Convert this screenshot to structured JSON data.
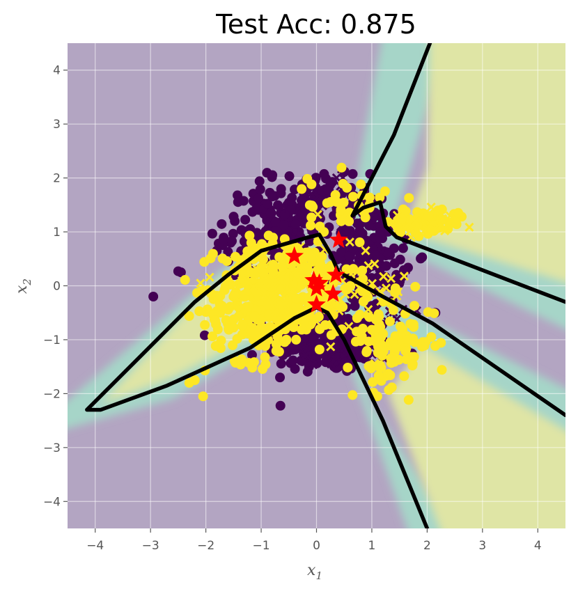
{
  "chart_data": {
    "type": "scatter",
    "title": "Test Acc: 0.875",
    "xlabel": "x",
    "xlabel_sub": "1",
    "ylabel": "x",
    "ylabel_sub": "2",
    "xlim": [
      -4.5,
      4.5
    ],
    "ylim": [
      -4.5,
      4.5
    ],
    "xticks": [
      -4,
      -3,
      -2,
      -1,
      0,
      1,
      2,
      3,
      4
    ],
    "yticks": [
      -4,
      -3,
      -2,
      -1,
      0,
      1,
      2,
      3,
      4
    ],
    "xtick_labels": [
      "−4",
      "−3",
      "−2",
      "−1",
      "0",
      "1",
      "2",
      "3",
      "4"
    ],
    "ytick_labels": [
      "−4",
      "−3",
      "−2",
      "−1",
      "0",
      "1",
      "2",
      "3",
      "4"
    ],
    "grid": true,
    "colors": {
      "class0": "#440154",
      "class1": "#fde725",
      "star": "#ff0000",
      "boundary": "#000000",
      "bg_purple": "#b3a5c2",
      "bg_teal": "#a6d5c8",
      "bg_yellow": "#dfe5a5",
      "axes_face": "#e5e5e5",
      "grid": "#ffffff"
    },
    "decision_boundary": [
      [
        [
          2.05,
          4.5
        ],
        [
          1.4,
          2.8
        ],
        [
          0.65,
          1.3
        ],
        [
          0.85,
          1.45
        ],
        [
          1.15,
          1.55
        ],
        [
          1.25,
          1.1
        ],
        [
          1.45,
          0.9
        ],
        [
          4.5,
          -0.3
        ]
      ],
      [
        [
          0.5,
          0.2
        ],
        [
          1.2,
          -0.2
        ],
        [
          2.1,
          -0.7
        ],
        [
          4.5,
          -2.4
        ]
      ],
      [
        [
          0.0,
          -0.4
        ],
        [
          0.2,
          -0.5
        ],
        [
          0.5,
          -1.0
        ],
        [
          1.2,
          -2.5
        ],
        [
          2.0,
          -4.5
        ]
      ],
      [
        [
          -0.15,
          0.9
        ],
        [
          0.05,
          0.95
        ],
        [
          0.25,
          0.6
        ],
        [
          0.4,
          0.25
        ]
      ],
      [
        [
          -0.15,
          0.9
        ],
        [
          -1.0,
          0.65
        ],
        [
          -1.6,
          0.2
        ],
        [
          -2.2,
          -0.3
        ],
        [
          -4.15,
          -2.3
        ],
        [
          -3.9,
          -2.3
        ],
        [
          -2.7,
          -1.85
        ],
        [
          -1.2,
          -1.15
        ],
        [
          -0.4,
          -0.6
        ],
        [
          0.0,
          -0.4
        ]
      ]
    ],
    "stars": [
      {
        "x": -0.4,
        "y": 0.55
      },
      {
        "x": 0.4,
        "y": 0.85
      },
      {
        "x": -0.05,
        "y": 0.1
      },
      {
        "x": 0.05,
        "y": 0.05
      },
      {
        "x": 0.0,
        "y": -0.05
      },
      {
        "x": 0.35,
        "y": 0.2
      },
      {
        "x": 0.3,
        "y": -0.15
      },
      {
        "x": 0.0,
        "y": -0.35
      }
    ],
    "series": [
      {
        "class": 0,
        "marker": "circle",
        "clusters": [
          {
            "cx": 0.2,
            "cy": -1.05,
            "sx": 0.55,
            "sy": 0.28,
            "n": 260
          },
          {
            "cx": -0.75,
            "cy": 0.95,
            "sx": 0.45,
            "sy": 0.42,
            "n": 200
          },
          {
            "cx": 0.95,
            "cy": 0.6,
            "sx": 0.32,
            "sy": 0.5,
            "n": 180
          },
          {
            "cx": 0.05,
            "cy": 1.6,
            "sx": 0.45,
            "sy": 0.3,
            "n": 60
          }
        ],
        "points": [
          [
            -2.95,
            -0.2
          ],
          [
            -2.5,
            0.27
          ],
          [
            -2.45,
            0.25
          ],
          [
            2.15,
            -0.5
          ]
        ]
      },
      {
        "class": 0,
        "marker": "x",
        "clusters": [
          {
            "cx": 0.1,
            "cy": -1.05,
            "sx": 0.5,
            "sy": 0.25,
            "n": 40
          },
          {
            "cx": 0.3,
            "cy": 1.6,
            "sx": 0.4,
            "sy": 0.35,
            "n": 30
          },
          {
            "cx": 1.4,
            "cy": -0.5,
            "sx": 0.25,
            "sy": 0.35,
            "n": 15
          }
        ],
        "points": []
      },
      {
        "class": 1,
        "marker": "circle",
        "clusters": [
          {
            "cx": -0.5,
            "cy": 0.0,
            "sx": 0.6,
            "sy": 0.45,
            "n": 300
          },
          {
            "cx": -1.1,
            "cy": -0.5,
            "sx": 0.45,
            "sy": 0.45,
            "n": 150
          },
          {
            "cx": 0.55,
            "cy": 1.5,
            "sx": 0.35,
            "sy": 0.3,
            "n": 40
          },
          {
            "cx": 1.35,
            "cy": -1.05,
            "sx": 0.4,
            "sy": 0.4,
            "n": 110
          },
          {
            "cx": 2.0,
            "cy": 1.2,
            "sx": 0.35,
            "sy": 0.12,
            "n": 70
          }
        ],
        "points": [
          [
            -2.05,
            -2.05
          ],
          [
            -2.2,
            -1.75
          ],
          [
            1.1,
            -2.05
          ],
          [
            -2.3,
            -1.8
          ]
        ]
      },
      {
        "class": 1,
        "marker": "x",
        "clusters": [
          {
            "cx": -0.4,
            "cy": 0.0,
            "sx": 0.7,
            "sy": 0.5,
            "n": 50
          },
          {
            "cx": 1.0,
            "cy": 0.1,
            "sx": 0.3,
            "sy": 0.25,
            "n": 25
          },
          {
            "cx": 1.9,
            "cy": 1.1,
            "sx": 0.3,
            "sy": 0.15,
            "n": 20
          }
        ],
        "points": []
      }
    ]
  }
}
